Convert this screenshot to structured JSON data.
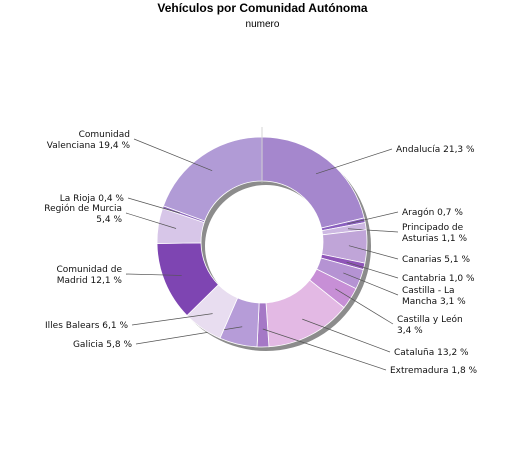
{
  "chart_data": {
    "type": "pie",
    "title": "Vehículos por Comunidad Autónoma",
    "subtitle": "numero",
    "slices": [
      {
        "lines": [
          "Andalucía 21,3 %"
        ],
        "value": 21.3,
        "color": "#a587cd"
      },
      {
        "lines": [
          "Aragón 0,7 %"
        ],
        "value": 0.7,
        "color": "#8a5fbf"
      },
      {
        "lines": [
          "Principado de",
          "Asturias 1,1 %"
        ],
        "value": 1.1,
        "color": "#cdb8e2"
      },
      {
        "lines": [
          "Canarias 5,1 %"
        ],
        "value": 5.1,
        "color": "#c0a5d8"
      },
      {
        "lines": [
          "Cantabria 1,0 %"
        ],
        "value": 1.0,
        "color": "#8f55b8"
      },
      {
        "lines": [
          "Castilla - La",
          "Mancha 3,1 %"
        ],
        "value": 3.1,
        "color": "#b593d3"
      },
      {
        "lines": [
          "Castilla y León",
          "3,4 %"
        ],
        "value": 3.4,
        "color": "#c78fd6"
      },
      {
        "lines": [
          "Cataluña 13,2 %"
        ],
        "value": 13.2,
        "color": "#e3b9e4"
      },
      {
        "lines": [
          "Extremadura 1,8 %"
        ],
        "value": 1.8,
        "color": "#a578c6"
      },
      {
        "lines": [
          "Galicia 5,8 %"
        ],
        "value": 5.8,
        "color": "#b69cd8"
      },
      {
        "lines": [
          "Illes Balears 6,1 %"
        ],
        "value": 6.1,
        "color": "#e8ddf0"
      },
      {
        "lines": [
          "Comunidad de",
          "Madrid 12,1 %"
        ],
        "value": 12.1,
        "color": "#7e45b2"
      },
      {
        "lines": [
          "Región de Murcia",
          "5,4 %"
        ],
        "value": 5.4,
        "color": "#d7c6e8"
      },
      {
        "lines": [
          "La Rioja 0,4 %"
        ],
        "value": 0.4,
        "color": "#8c65bd"
      },
      {
        "lines": [
          "Comunidad",
          "Valenciana 19,4 %"
        ],
        "value": 19.4,
        "color": "#b19bd6"
      }
    ]
  }
}
